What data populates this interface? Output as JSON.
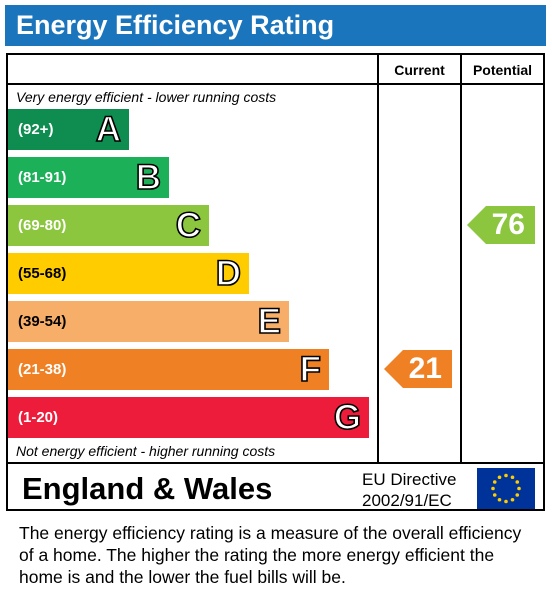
{
  "title": "Energy Efficiency Rating",
  "columns": {
    "current": "Current",
    "potential": "Potential"
  },
  "top_note": "Very energy efficient - lower running costs",
  "bottom_note": "Not energy efficient - higher running costs",
  "chart_data": {
    "type": "bar",
    "title": "Energy Efficiency Rating",
    "categories": [
      "A",
      "B",
      "C",
      "D",
      "E",
      "F",
      "G"
    ],
    "bands": [
      {
        "letter": "A",
        "range": "(92+)",
        "color": "#0f8c50"
      },
      {
        "letter": "B",
        "range": "(81-91)",
        "color": "#1cb159"
      },
      {
        "letter": "C",
        "range": "(69-80)",
        "color": "#8cc63f"
      },
      {
        "letter": "D",
        "range": "(55-68)",
        "color": "#ffcc00"
      },
      {
        "letter": "E",
        "range": "(39-54)",
        "color": "#f7ae68"
      },
      {
        "letter": "F",
        "range": "(21-38)",
        "color": "#f08024"
      },
      {
        "letter": "G",
        "range": "(1-20)",
        "color": "#ed1c3a"
      }
    ],
    "current": {
      "value": 21,
      "band": "F",
      "color": "#f08024"
    },
    "potential": {
      "value": 76,
      "band": "C",
      "color": "#8cc63f"
    }
  },
  "footer": {
    "region": "England & Wales",
    "directive_line1": "EU Directive",
    "directive_line2": "2002/91/EC"
  },
  "explanation": "The energy efficiency rating is a measure of the overall efficiency of a home.  The higher the rating the more energy efficient the home is and the lower the fuel bills will be."
}
